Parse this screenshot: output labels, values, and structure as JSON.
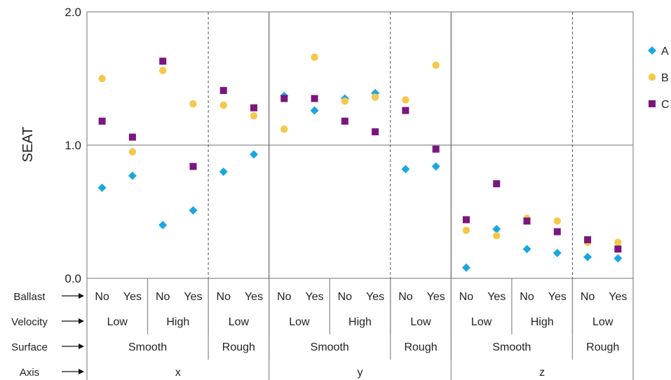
{
  "chart_data": {
    "type": "scatter",
    "ylabel": "SEAT",
    "ylim": [
      0,
      2
    ],
    "yticks": [
      "0.0",
      "1.0",
      "2.0"
    ],
    "grid": "horizontal at 1.0; solid vertical separators between axes; dashed between surfaces",
    "legend_position": "right",
    "row_labels": [
      "Ballast",
      "Velocity",
      "Surface",
      "Axis"
    ],
    "categories": [
      {
        "ballast": "No",
        "velocity": "Low",
        "surface": "Smooth",
        "axis": "x"
      },
      {
        "ballast": "Yes",
        "velocity": "Low",
        "surface": "Smooth",
        "axis": "x"
      },
      {
        "ballast": "No",
        "velocity": "High",
        "surface": "Smooth",
        "axis": "x"
      },
      {
        "ballast": "Yes",
        "velocity": "High",
        "surface": "Smooth",
        "axis": "x"
      },
      {
        "ballast": "No",
        "velocity": "Low",
        "surface": "Rough",
        "axis": "x"
      },
      {
        "ballast": "Yes",
        "velocity": "Low",
        "surface": "Rough",
        "axis": "x"
      },
      {
        "ballast": "No",
        "velocity": "Low",
        "surface": "Smooth",
        "axis": "y"
      },
      {
        "ballast": "Yes",
        "velocity": "Low",
        "surface": "Smooth",
        "axis": "y"
      },
      {
        "ballast": "No",
        "velocity": "High",
        "surface": "Smooth",
        "axis": "y"
      },
      {
        "ballast": "Yes",
        "velocity": "High",
        "surface": "Smooth",
        "axis": "y"
      },
      {
        "ballast": "No",
        "velocity": "Low",
        "surface": "Rough",
        "axis": "y"
      },
      {
        "ballast": "Yes",
        "velocity": "Low",
        "surface": "Rough",
        "axis": "y"
      },
      {
        "ballast": "No",
        "velocity": "Low",
        "surface": "Smooth",
        "axis": "z"
      },
      {
        "ballast": "Yes",
        "velocity": "Low",
        "surface": "Smooth",
        "axis": "z"
      },
      {
        "ballast": "No",
        "velocity": "High",
        "surface": "Smooth",
        "axis": "z"
      },
      {
        "ballast": "Yes",
        "velocity": "High",
        "surface": "Smooth",
        "axis": "z"
      },
      {
        "ballast": "No",
        "velocity": "Low",
        "surface": "Rough",
        "axis": "z"
      },
      {
        "ballast": "Yes",
        "velocity": "Low",
        "surface": "Rough",
        "axis": "z"
      }
    ],
    "velocity_groups": [
      {
        "label": "Low",
        "span": [
          0,
          1
        ]
      },
      {
        "label": "High",
        "span": [
          2,
          3
        ]
      },
      {
        "label": "Low",
        "span": [
          4,
          5
        ]
      },
      {
        "label": "Low",
        "span": [
          6,
          7
        ]
      },
      {
        "label": "High",
        "span": [
          8,
          9
        ]
      },
      {
        "label": "Low",
        "span": [
          10,
          11
        ]
      },
      {
        "label": "Low",
        "span": [
          12,
          13
        ]
      },
      {
        "label": "High",
        "span": [
          14,
          15
        ]
      },
      {
        "label": "Low",
        "span": [
          16,
          17
        ]
      }
    ],
    "surface_groups": [
      {
        "label": "Smooth",
        "span": [
          0,
          3
        ]
      },
      {
        "label": "Rough",
        "span": [
          4,
          5
        ]
      },
      {
        "label": "Smooth",
        "span": [
          6,
          9
        ]
      },
      {
        "label": "Rough",
        "span": [
          10,
          11
        ]
      },
      {
        "label": "Smooth",
        "span": [
          12,
          15
        ]
      },
      {
        "label": "Rough",
        "span": [
          16,
          17
        ]
      }
    ],
    "axis_groups": [
      {
        "label": "x",
        "span": [
          0,
          5
        ]
      },
      {
        "label": "y",
        "span": [
          6,
          11
        ]
      },
      {
        "label": "z",
        "span": [
          12,
          17
        ]
      }
    ],
    "series": [
      {
        "name": "A",
        "marker": "diamond",
        "color": "#1aa7e0",
        "values": [
          0.68,
          0.77,
          0.4,
          0.51,
          0.8,
          0.93,
          1.37,
          1.26,
          1.35,
          1.39,
          0.82,
          0.84,
          0.08,
          0.37,
          0.22,
          0.19,
          0.16,
          0.15
        ]
      },
      {
        "name": "B",
        "marker": "circle",
        "color": "#f5c84b",
        "values": [
          1.5,
          0.95,
          1.56,
          1.31,
          1.3,
          1.22,
          1.12,
          1.66,
          1.33,
          1.36,
          1.34,
          1.6,
          0.36,
          0.32,
          0.45,
          0.43,
          0.27,
          0.27
        ]
      },
      {
        "name": "C",
        "marker": "square",
        "color": "#7b167e",
        "values": [
          1.18,
          1.06,
          1.63,
          0.84,
          1.41,
          1.28,
          1.35,
          1.35,
          1.18,
          1.1,
          1.26,
          0.97,
          0.44,
          0.71,
          0.43,
          0.35,
          0.29,
          0.22
        ]
      }
    ]
  }
}
